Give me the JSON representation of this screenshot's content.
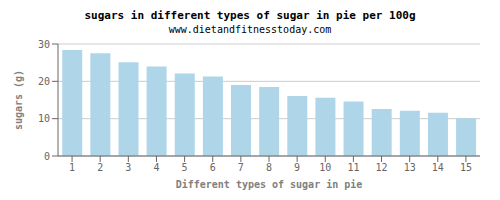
{
  "chart_data": {
    "type": "bar",
    "title": "sugars in different types of sugar in pie per 100g",
    "subtitle": "www.dietandfitnesstoday.com",
    "xlabel": "Different types of sugar in pie",
    "ylabel": "sugars (g)",
    "categories": [
      1,
      2,
      3,
      4,
      5,
      6,
      7,
      8,
      9,
      10,
      11,
      12,
      13,
      14,
      15
    ],
    "values": [
      28.4,
      27.5,
      25.1,
      24.0,
      22.1,
      21.3,
      19.0,
      18.5,
      16.1,
      15.6,
      14.6,
      12.6,
      12.1,
      11.6,
      10.1
    ],
    "color": "#aed6e8",
    "ylim": [
      0,
      30
    ],
    "yticks": [
      0,
      10,
      20,
      30
    ],
    "grid": true
  }
}
